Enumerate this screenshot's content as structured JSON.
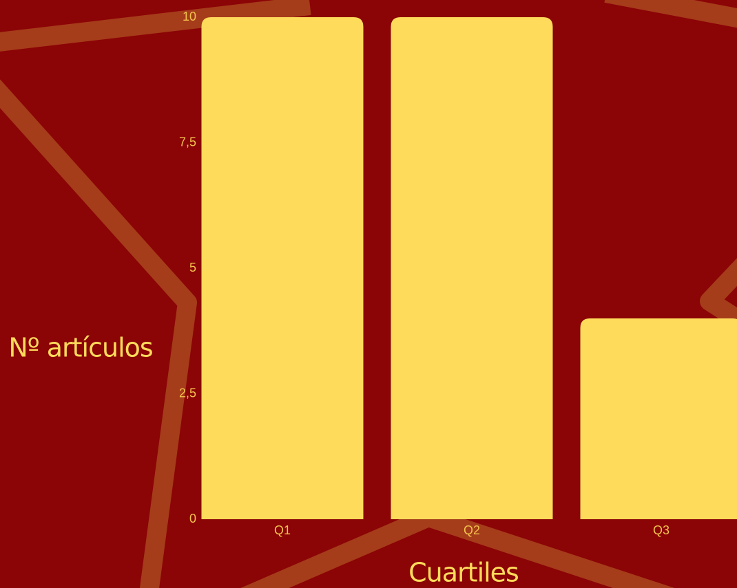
{
  "chart_data": {
    "type": "bar",
    "categories": [
      "Q1",
      "Q2",
      "Q3"
    ],
    "values": [
      10,
      10,
      4
    ],
    "color": "#fedb5b",
    "ylim": [
      0,
      10
    ],
    "yticks": [
      0,
      {
        "value": 2.5,
        "label": "2,5"
      },
      5,
      {
        "value": 7.5,
        "label": "7,5"
      },
      10
    ],
    "y_label": "Nº artículos",
    "x_label": "Cuartiles"
  }
}
